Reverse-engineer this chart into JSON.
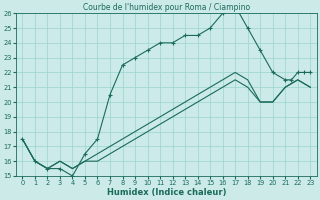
{
  "title": "Courbe de l'humidex pour Roma / Ciampino",
  "xlabel": "Humidex (Indice chaleur)",
  "xlim": [
    -0.5,
    23.5
  ],
  "ylim": [
    15,
    26
  ],
  "xticks": [
    0,
    1,
    2,
    3,
    4,
    5,
    6,
    7,
    8,
    9,
    10,
    11,
    12,
    13,
    14,
    15,
    16,
    17,
    18,
    19,
    20,
    21,
    22,
    23
  ],
  "yticks": [
    15,
    16,
    17,
    18,
    19,
    20,
    21,
    22,
    23,
    24,
    25,
    26
  ],
  "bg_color": "#cceae7",
  "grid_color": "#99d5cf",
  "line_color": "#1a6b5a",
  "lines": [
    {
      "x": [
        0,
        1,
        2,
        3,
        4,
        5,
        6,
        7,
        8,
        9,
        10,
        11,
        12,
        13,
        14,
        15,
        16,
        17,
        18,
        19,
        20,
        21,
        21.5,
        22,
        22.5,
        23
      ],
      "y": [
        17.5,
        16.0,
        15.5,
        15.5,
        15.0,
        16.5,
        17.5,
        20.5,
        22.5,
        23.0,
        23.5,
        24.0,
        24.0,
        24.5,
        24.5,
        25.0,
        26.0,
        26.5,
        25.0,
        23.5,
        22.0,
        21.5,
        21.5,
        22.0,
        22.0,
        22.0
      ],
      "marker": true
    },
    {
      "x": [
        0,
        1,
        2,
        3,
        4,
        5,
        6,
        7,
        8,
        9,
        10,
        11,
        12,
        13,
        14,
        15,
        16,
        17,
        18,
        19,
        20,
        21,
        22,
        23
      ],
      "y": [
        17.5,
        16.0,
        15.5,
        16.0,
        15.5,
        16.0,
        16.5,
        17.0,
        17.5,
        18.0,
        18.5,
        19.0,
        19.5,
        20.0,
        20.5,
        21.0,
        21.5,
        22.0,
        21.5,
        20.0,
        20.0,
        21.0,
        21.5,
        21.0
      ],
      "marker": false
    },
    {
      "x": [
        0,
        1,
        2,
        3,
        4,
        5,
        6,
        7,
        8,
        9,
        10,
        11,
        12,
        13,
        14,
        15,
        16,
        17,
        18,
        19,
        20,
        21,
        22,
        23
      ],
      "y": [
        17.5,
        16.0,
        15.5,
        16.0,
        15.5,
        16.0,
        16.0,
        16.5,
        17.0,
        17.5,
        18.0,
        18.5,
        19.0,
        19.5,
        20.0,
        20.5,
        21.0,
        21.5,
        21.0,
        20.0,
        20.0,
        21.0,
        21.5,
        21.0
      ],
      "marker": false
    }
  ],
  "title_fontsize": 5.5,
  "xlabel_fontsize": 6,
  "tick_fontsize": 4.8
}
